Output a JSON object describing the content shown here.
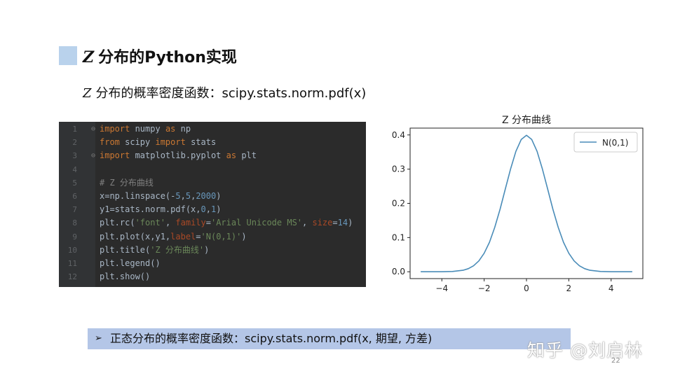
{
  "slide": {
    "title_z": "Z",
    "title_text": "分布的Python实现",
    "subtitle_z": "Z",
    "subtitle_text": "分布的概率密度函数：scipy.stats.norm.pdf(x)",
    "bottom_arrow": "➢",
    "bottom_text": "正态分布的概率密度函数：scipy.stats.norm.pdf(x, 期望, 方差)",
    "watermark": "知乎 @刘启林",
    "page_number": "22"
  },
  "code": {
    "lines": [
      {
        "n": "1",
        "fold": true,
        "tokens": [
          {
            "t": "import",
            "c": "kw"
          },
          {
            "t": " numpy ",
            "c": ""
          },
          {
            "t": "as",
            "c": "kw"
          },
          {
            "t": " np",
            "c": ""
          }
        ]
      },
      {
        "n": "2",
        "fold": false,
        "tokens": [
          {
            "t": "from",
            "c": "kw"
          },
          {
            "t": " scipy ",
            "c": ""
          },
          {
            "t": "import",
            "c": "kw"
          },
          {
            "t": " stats",
            "c": ""
          }
        ]
      },
      {
        "n": "3",
        "fold": true,
        "tokens": [
          {
            "t": "import",
            "c": "kw"
          },
          {
            "t": " matplotlib.pyplot ",
            "c": ""
          },
          {
            "t": "as",
            "c": "kw"
          },
          {
            "t": " plt",
            "c": ""
          }
        ]
      },
      {
        "n": "4",
        "fold": false,
        "tokens": []
      },
      {
        "n": "5",
        "fold": false,
        "tokens": [
          {
            "t": "# Z 分布曲线",
            "c": "cmt"
          }
        ]
      },
      {
        "n": "6",
        "fold": false,
        "tokens": [
          {
            "t": "x=np.linspace(-",
            "c": ""
          },
          {
            "t": "5",
            "c": "num"
          },
          {
            "t": ",",
            "c": ""
          },
          {
            "t": "5",
            "c": "num"
          },
          {
            "t": ",",
            "c": ""
          },
          {
            "t": "2000",
            "c": "num"
          },
          {
            "t": ")",
            "c": ""
          }
        ]
      },
      {
        "n": "7",
        "fold": false,
        "tokens": [
          {
            "t": "y1=stats.norm.pdf(x,",
            "c": ""
          },
          {
            "t": "0",
            "c": "num"
          },
          {
            "t": ",",
            "c": ""
          },
          {
            "t": "1",
            "c": "num"
          },
          {
            "t": ")",
            "c": ""
          }
        ]
      },
      {
        "n": "8",
        "fold": false,
        "tokens": [
          {
            "t": "plt.rc(",
            "c": ""
          },
          {
            "t": "'font'",
            "c": "str"
          },
          {
            "t": ", ",
            "c": ""
          },
          {
            "t": "family",
            "c": "param"
          },
          {
            "t": "=",
            "c": ""
          },
          {
            "t": "'Arial Unicode MS'",
            "c": "str"
          },
          {
            "t": ", ",
            "c": ""
          },
          {
            "t": "size",
            "c": "param"
          },
          {
            "t": "=",
            "c": ""
          },
          {
            "t": "14",
            "c": "num"
          },
          {
            "t": ")",
            "c": ""
          }
        ]
      },
      {
        "n": "9",
        "fold": false,
        "tokens": [
          {
            "t": "plt.plot(x,y1,",
            "c": ""
          },
          {
            "t": "label",
            "c": "param"
          },
          {
            "t": "=",
            "c": ""
          },
          {
            "t": "'N(0,1)'",
            "c": "str"
          },
          {
            "t": ")",
            "c": ""
          }
        ]
      },
      {
        "n": "10",
        "fold": false,
        "tokens": [
          {
            "t": "plt.title(",
            "c": ""
          },
          {
            "t": "'Z 分布曲线'",
            "c": "str"
          },
          {
            "t": ")",
            "c": ""
          }
        ]
      },
      {
        "n": "11",
        "fold": false,
        "tokens": [
          {
            "t": "plt.legend()",
            "c": ""
          }
        ]
      },
      {
        "n": "12",
        "fold": false,
        "tokens": [
          {
            "t": "plt.show()",
            "c": ""
          }
        ]
      }
    ]
  },
  "chart_data": {
    "type": "line",
    "title": "Z 分布曲线",
    "xlabel": "",
    "ylabel": "",
    "xlim": [
      -5.5,
      5.5
    ],
    "ylim": [
      -0.02,
      0.42
    ],
    "x_ticks": [
      -4,
      -2,
      0,
      2,
      4
    ],
    "x_tick_labels": [
      "−4",
      "−2",
      "0",
      "2",
      "4"
    ],
    "y_ticks": [
      0.0,
      0.1,
      0.2,
      0.3,
      0.4
    ],
    "y_tick_labels": [
      "0.0",
      "0.1",
      "0.2",
      "0.3",
      "0.4"
    ],
    "grid": false,
    "legend_position": "top-right",
    "series": [
      {
        "name": "N(0,1)",
        "color": "#4a8cb8",
        "x": [
          -5,
          -4.5,
          -4,
          -3.5,
          -3,
          -2.75,
          -2.5,
          -2.25,
          -2,
          -1.75,
          -1.5,
          -1.25,
          -1,
          -0.75,
          -0.5,
          -0.25,
          0,
          0.25,
          0.5,
          0.75,
          1,
          1.25,
          1.5,
          1.75,
          2,
          2.25,
          2.5,
          2.75,
          3,
          3.5,
          4,
          4.5,
          5
        ],
        "y": [
          0.0,
          0.0,
          0.0001,
          0.0009,
          0.0044,
          0.0091,
          0.0175,
          0.0317,
          0.054,
          0.0863,
          0.1295,
          0.1826,
          0.242,
          0.3011,
          0.3521,
          0.3867,
          0.3989,
          0.3867,
          0.3521,
          0.3011,
          0.242,
          0.1826,
          0.1295,
          0.0863,
          0.054,
          0.0317,
          0.0175,
          0.0091,
          0.0044,
          0.0009,
          0.0001,
          0.0,
          0.0
        ]
      }
    ]
  }
}
